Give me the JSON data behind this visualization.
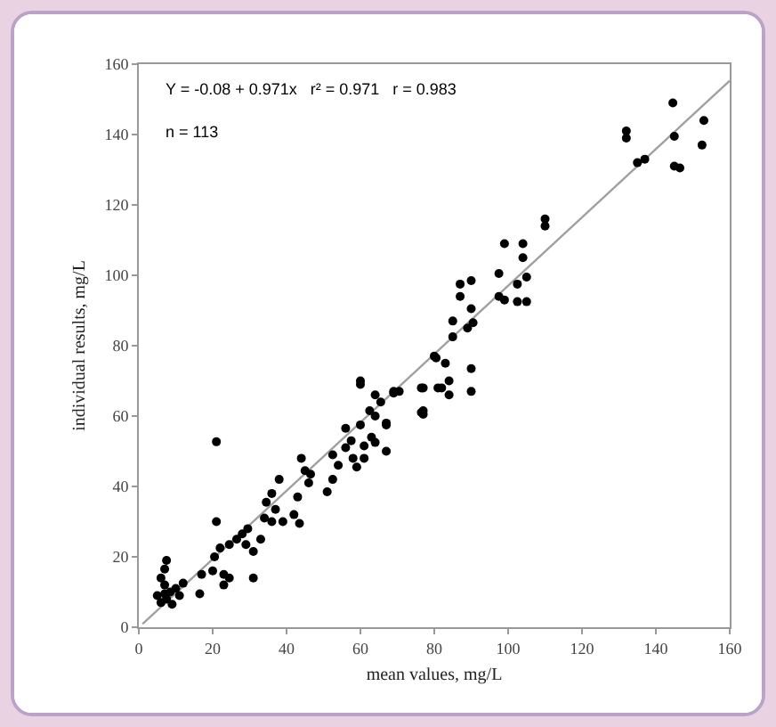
{
  "chart_data": {
    "type": "scatter",
    "xlabel": "mean values, mg/L",
    "ylabel": "individual results, mg/L",
    "xlim": [
      0,
      160
    ],
    "ylim": [
      0,
      160
    ],
    "xticks": [
      0,
      20,
      40,
      60,
      80,
      100,
      120,
      140,
      160
    ],
    "yticks": [
      0,
      20,
      40,
      60,
      80,
      100,
      120,
      140,
      160
    ],
    "grid": false,
    "marker": "circle",
    "annotations": [
      "Y = -0.08 + 0.971x   r² = 0.971   r = 0.983",
      "n = 113"
    ],
    "series": [
      {
        "color": "#000000",
        "x": [
          144.6,
          132,
          132,
          137,
          135,
          145,
          145,
          146.5,
          153,
          152.5,
          110,
          110,
          99,
          104,
          104,
          97.5,
          102.5,
          105,
          87,
          90,
          87,
          97.5,
          99,
          102.5,
          105,
          90,
          85,
          90.5,
          85,
          89,
          80,
          83,
          90,
          84,
          82,
          84,
          90,
          77,
          76.5,
          69,
          70.5,
          60,
          64,
          21,
          60,
          76.5,
          77,
          81,
          80.5,
          67,
          67,
          7.5,
          7,
          6,
          7,
          8.5,
          6,
          7.5,
          10,
          12,
          11,
          5,
          9,
          7,
          16.5,
          17,
          20,
          20.5,
          23,
          23,
          24.5,
          21,
          22,
          24.5,
          31,
          26.5,
          28,
          29.5,
          29,
          31,
          33,
          34,
          34.5,
          36,
          38,
          37,
          36,
          39,
          42,
          43.5,
          43,
          44,
          45,
          46,
          46.5,
          51,
          52.5,
          54,
          56,
          57.5,
          58,
          59,
          60,
          61,
          63,
          64,
          65.5,
          67,
          69,
          62.5,
          64,
          52.5,
          56,
          61,
          77
        ],
        "values": [
          149,
          139,
          141,
          133,
          132,
          139.5,
          131,
          130.5,
          144,
          137,
          116,
          114,
          109,
          109,
          105,
          100.5,
          97.5,
          99.5,
          97.5,
          98.5,
          94,
          94,
          93,
          92.5,
          92.5,
          90.5,
          87,
          86.5,
          82.5,
          85,
          77,
          75,
          73.5,
          70,
          68,
          66,
          67,
          68,
          61,
          67,
          67,
          70,
          66,
          52.7,
          69,
          68,
          60.5,
          68,
          76.5,
          50,
          57.5,
          19,
          16.5,
          14,
          12,
          10,
          7,
          8,
          11,
          12.5,
          9,
          9,
          6.5,
          9.5,
          9.5,
          15,
          16,
          20,
          15,
          12,
          14,
          30,
          22.5,
          23.5,
          14,
          25,
          26.5,
          28,
          23.5,
          21.5,
          25,
          31,
          35.5,
          38,
          42,
          33.5,
          30,
          30,
          32,
          29.5,
          37,
          48,
          44.5,
          41,
          43.5,
          38.5,
          42,
          46,
          51,
          53,
          48,
          45.5,
          57.5,
          51.5,
          54,
          60,
          64,
          58,
          66.5,
          61.5,
          52.5,
          49,
          56.5,
          48,
          61.5
        ]
      },
      {
        "type": "line",
        "color": "#a0a0a0",
        "x": [
          1,
          160
        ],
        "values": [
          0.9,
          155.3
        ],
        "marker": "none",
        "line_style": "solid"
      }
    ]
  }
}
